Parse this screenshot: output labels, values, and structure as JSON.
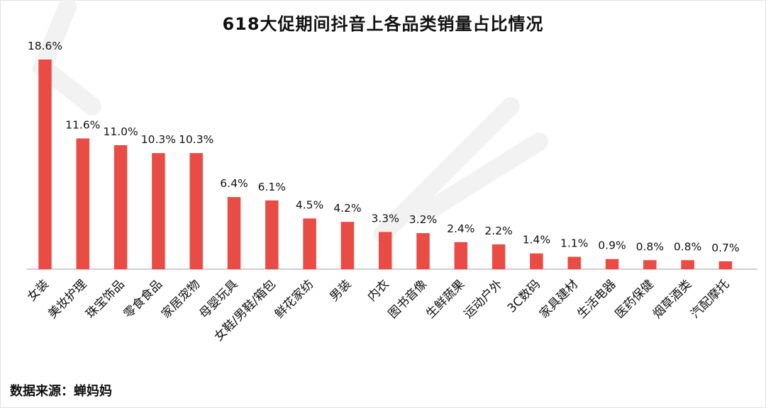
{
  "source_label": "数据来源：蝉妈妈",
  "colors": {
    "bar": "#e84c45",
    "axis": "#bfbfbf",
    "watermark": "#f1f1f1"
  },
  "chart_data": {
    "type": "bar",
    "title": "618大促期间抖音上各品类销量占比情况",
    "categories": [
      "女装",
      "美妆护理",
      "珠宝饰品",
      "零食食品",
      "家居宠物",
      "母婴玩具",
      "女鞋/男鞋/箱包",
      "鲜花家纺",
      "男装",
      "内衣",
      "图书音像",
      "生鲜蔬果",
      "运动户外",
      "3C数码",
      "家具建材",
      "生活电器",
      "医药保健",
      "烟草酒类",
      "汽配摩托"
    ],
    "values": [
      18.6,
      11.6,
      11.0,
      10.3,
      10.3,
      6.4,
      6.1,
      4.5,
      4.2,
      3.3,
      3.2,
      2.4,
      2.2,
      1.4,
      1.1,
      0.9,
      0.8,
      0.8,
      0.7
    ],
    "value_labels": [
      "18.6%",
      "11.6%",
      "11.0%",
      "10.3%",
      "10.3%",
      "6.4%",
      "6.1%",
      "4.5%",
      "4.2%",
      "3.3%",
      "3.2%",
      "2.4%",
      "2.2%",
      "1.4%",
      "1.1%",
      "0.9%",
      "0.8%",
      "0.8%",
      "0.7%"
    ],
    "value_format": "percent",
    "grid": false,
    "legend": "none"
  }
}
